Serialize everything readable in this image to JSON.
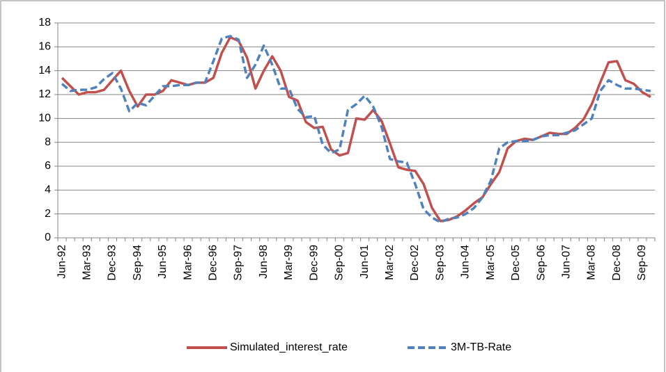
{
  "chart_data": {
    "type": "line",
    "categories": [
      "Jun-92",
      null,
      null,
      "Mar-93",
      null,
      null,
      "Dec-93",
      null,
      null,
      "Sep-94",
      null,
      null,
      "Jun-95",
      null,
      null,
      "Mar-96",
      null,
      null,
      "Dec-96",
      null,
      null,
      "Sep-97",
      null,
      null,
      "Jun-98",
      null,
      null,
      "Mar-99",
      null,
      null,
      "Dec-99",
      null,
      null,
      "Sep-00",
      null,
      null,
      "Jun-01",
      null,
      null,
      "Mar-02",
      null,
      null,
      "Dec-02",
      null,
      null,
      "Sep-03",
      null,
      null,
      "Jun-04",
      null,
      null,
      "Mar-05",
      null,
      null,
      "Dec-05",
      null,
      null,
      "Sep-06",
      null,
      null,
      "Jun-07",
      null,
      null,
      "Mar-08",
      null,
      null,
      "Dec-08",
      null,
      null,
      "Sep-09",
      null
    ],
    "series": [
      {
        "name": "Simulated_interest_rate",
        "color": "#c0504d",
        "dash": false,
        "values": [
          13.4,
          12.7,
          12.0,
          12.2,
          12.2,
          12.4,
          13.2,
          14.0,
          12.3,
          11.0,
          12.0,
          12.0,
          12.3,
          13.2,
          13.0,
          12.8,
          13.0,
          13.0,
          13.4,
          15.5,
          16.8,
          16.5,
          15.1,
          12.5,
          14.0,
          15.2,
          14.0,
          11.8,
          11.5,
          9.7,
          9.2,
          9.3,
          7.4,
          6.9,
          7.1,
          10.0,
          9.9,
          10.7,
          9.8,
          7.9,
          5.9,
          5.7,
          5.6,
          4.5,
          2.5,
          1.4,
          1.5,
          1.8,
          2.3,
          2.9,
          3.4,
          4.5,
          5.5,
          7.5,
          8.1,
          8.3,
          8.2,
          8.5,
          8.8,
          8.7,
          8.7,
          9.2,
          9.9,
          11.2,
          13.0,
          14.7,
          14.8,
          13.2,
          12.9,
          12.2,
          11.8
        ]
      },
      {
        "name": "3M-TB-Rate",
        "color": "#4f81bd",
        "dash": true,
        "values": [
          12.9,
          12.3,
          12.4,
          12.4,
          12.6,
          13.3,
          13.8,
          12.5,
          10.6,
          11.3,
          11.1,
          11.9,
          12.7,
          12.7,
          12.8,
          12.8,
          13.0,
          13.0,
          14.8,
          16.7,
          16.9,
          16.6,
          13.4,
          14.5,
          16.1,
          14.5,
          12.5,
          12.5,
          10.8,
          10.1,
          10.2,
          7.8,
          7.1,
          7.4,
          10.7,
          11.2,
          11.9,
          11.0,
          9.3,
          6.6,
          6.4,
          6.3,
          4.5,
          2.4,
          1.7,
          1.3,
          1.6,
          1.7,
          2.0,
          2.5,
          3.4,
          4.8,
          7.5,
          8.0,
          8.1,
          8.1,
          8.2,
          8.5,
          8.6,
          8.6,
          8.8,
          9.0,
          9.5,
          10.0,
          12.3,
          13.2,
          12.8,
          12.5,
          12.5,
          12.4,
          12.3
        ]
      }
    ],
    "ylim": [
      0,
      18
    ],
    "yticks": [
      0,
      2,
      4,
      6,
      8,
      10,
      12,
      14,
      16,
      18
    ],
    "grid": true,
    "legend": "bottom"
  }
}
